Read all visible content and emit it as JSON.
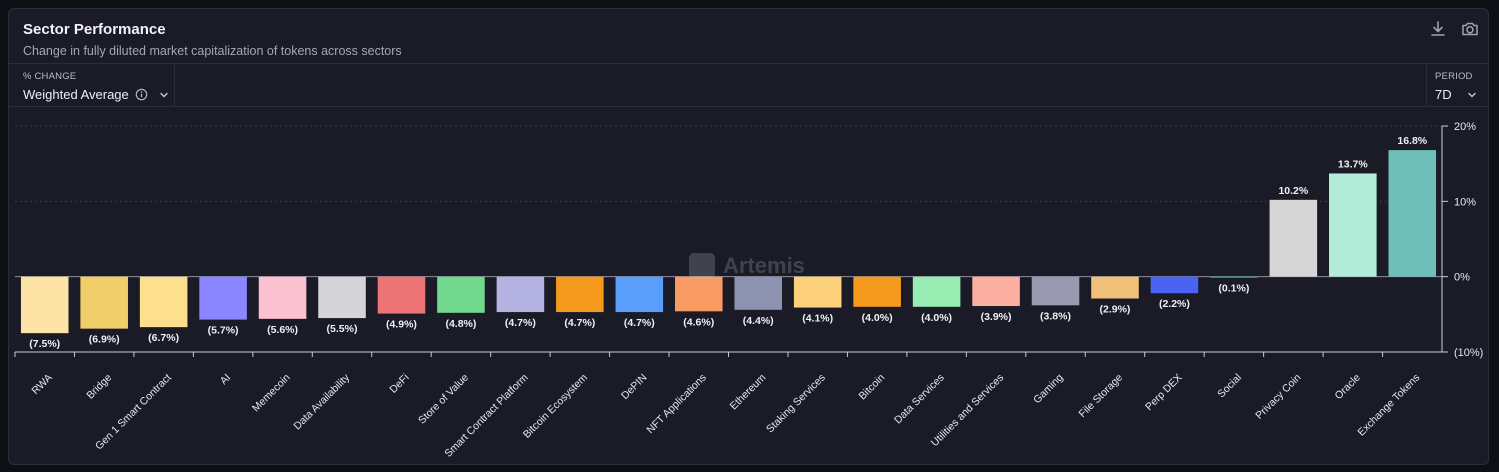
{
  "header": {
    "title": "Sector Performance",
    "subtitle": "Change in fully diluted market capitalization of tokens across sectors"
  },
  "controls": {
    "change": {
      "label": "% CHANGE",
      "value": "Weighted Average"
    },
    "period": {
      "label": "PERIOD",
      "value": "7D"
    }
  },
  "watermark": "Artemis",
  "icons": [
    "download-icon",
    "camera-icon",
    "info-icon",
    "chevron-down-icon"
  ],
  "chart_data": {
    "type": "bar",
    "categories": [
      "RWA",
      "Bridge",
      "Gen 1 Smart Contract",
      "AI",
      "Memecoin",
      "Data Availability",
      "DeFi",
      "Store of Value",
      "Smart Contract Platform",
      "Bitcoin Ecosystem",
      "DePIN",
      "NFT Applications",
      "Ethereum",
      "Staking Services",
      "Bitcoin",
      "Data Services",
      "Utilities and Services",
      "Gaming",
      "File Storage",
      "Perp DEX",
      "Social",
      "Privacy Coin",
      "Oracle",
      "Exchange Tokens"
    ],
    "values": [
      -7.5,
      -6.9,
      -6.7,
      -5.7,
      -5.6,
      -5.5,
      -4.9,
      -4.8,
      -4.7,
      -4.7,
      -4.7,
      -4.6,
      -4.4,
      -4.1,
      -4.0,
      -4.0,
      -3.9,
      -3.8,
      -2.9,
      -2.2,
      -0.1,
      10.2,
      13.7,
      16.8
    ],
    "labels": [
      "(7.5%)",
      "(6.9%)",
      "(6.7%)",
      "(5.7%)",
      "(5.6%)",
      "(5.5%)",
      "(4.9%)",
      "(4.8%)",
      "(4.7%)",
      "(4.7%)",
      "(4.7%)",
      "(4.6%)",
      "(4.4%)",
      "(4.1%)",
      "(4.0%)",
      "(4.0%)",
      "(3.9%)",
      "(3.8%)",
      "(2.9%)",
      "(2.2%)",
      "(0.1%)",
      "10.2%",
      "13.7%",
      "16.8%"
    ],
    "colors": [
      "#fde4a6",
      "#f0cf6a",
      "#fde08e",
      "#8b86ff",
      "#fcc1d1",
      "#d5d5d9",
      "#ee7575",
      "#71d88e",
      "#b4b3e2",
      "#f59a1c",
      "#5b9dfb",
      "#f99a63",
      "#8d92b0",
      "#fdd07c",
      "#f59a1c",
      "#98ecb1",
      "#fcaea0",
      "#9a9bb0",
      "#f2c179",
      "#4a63f2",
      "#1aa39a",
      "#d6d6d6",
      "#b3ecd9",
      "#6ebfb8"
    ],
    "yticks": [
      20,
      10,
      0,
      -10
    ],
    "ytick_labels": [
      "20%",
      "10%",
      "0%",
      "(10%)"
    ],
    "ylim": [
      -10,
      20
    ],
    "grid": true,
    "y_axis_side": "right"
  }
}
